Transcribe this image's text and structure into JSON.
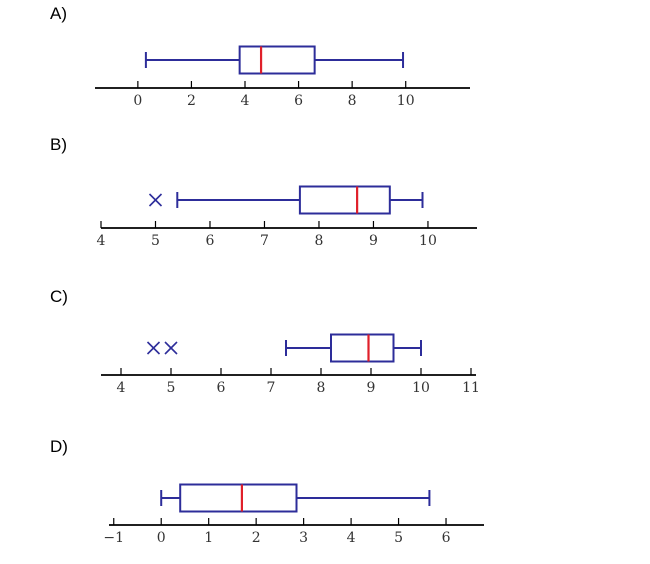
{
  "chart_data": [
    {
      "type": "boxplot",
      "label": "A)",
      "ticks": [
        "0",
        "2",
        "4",
        "6",
        "8",
        "10"
      ],
      "tick_values": [
        0,
        2,
        4,
        6,
        8,
        10
      ],
      "axis_range": [
        -1.6,
        12.4
      ],
      "whisker_low": 0.3,
      "q1": 3.8,
      "median": 4.6,
      "q3": 6.6,
      "whisker_high": 9.9,
      "outliers": []
    },
    {
      "type": "boxplot",
      "label": "B)",
      "ticks": [
        "4",
        "5",
        "6",
        "7",
        "8",
        "9",
        "10"
      ],
      "tick_values": [
        4,
        5,
        6,
        7,
        8,
        9,
        10
      ],
      "axis_range": [
        4,
        10.9
      ],
      "whisker_low": 5.4,
      "q1": 7.65,
      "median": 8.7,
      "q3": 9.3,
      "whisker_high": 9.9,
      "outliers": [
        5.0
      ]
    },
    {
      "type": "boxplot",
      "label": "C)",
      "ticks": [
        "4",
        "5",
        "6",
        "7",
        "8",
        "9",
        "10",
        "11"
      ],
      "tick_values": [
        4,
        5,
        6,
        7,
        8,
        9,
        10,
        11
      ],
      "axis_range": [
        3.6,
        11.1
      ],
      "whisker_low": 7.3,
      "q1": 8.2,
      "median": 8.95,
      "q3": 9.45,
      "whisker_high": 10.0,
      "outliers": [
        4.65,
        5.0
      ]
    },
    {
      "type": "boxplot",
      "label": "D)",
      "ticks": [
        "−1",
        "0",
        "1",
        "2",
        "3",
        "4",
        "5",
        "6"
      ],
      "tick_values": [
        -1,
        0,
        1,
        2,
        3,
        4,
        5,
        6
      ],
      "axis_range": [
        -1.1,
        6.8
      ],
      "whisker_low": 0.0,
      "q1": 0.4,
      "median": 1.7,
      "q3": 2.85,
      "whisker_high": 5.65,
      "outliers": []
    }
  ],
  "colors": {
    "box": "#2d2d9a",
    "median": "#e0202a",
    "axis": "#000000",
    "tick_text": "#333333"
  }
}
